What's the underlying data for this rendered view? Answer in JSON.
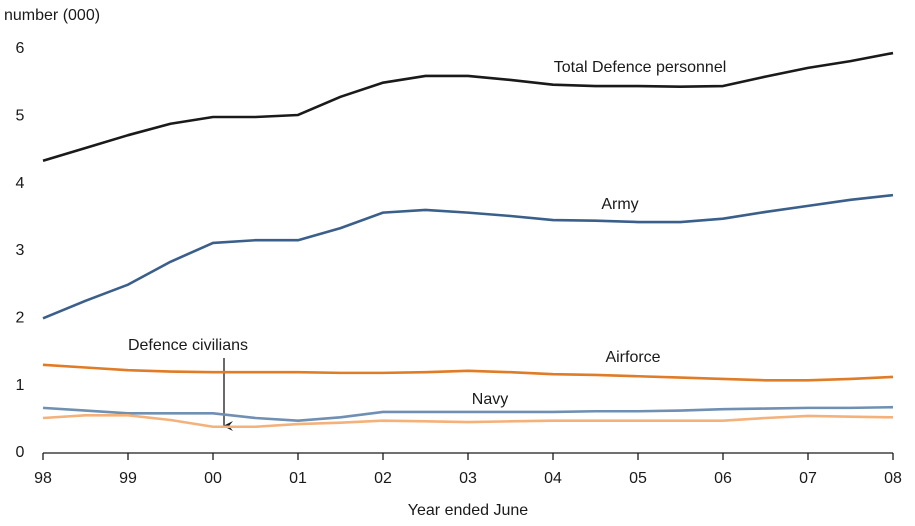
{
  "chart_data": {
    "type": "line",
    "y_label": "number (000)",
    "x_label": "Year ended June",
    "x": [
      1998,
      1998.5,
      1999,
      1999.5,
      2000,
      2000.5,
      2001,
      2001.5,
      2002,
      2002.5,
      2003,
      2003.5,
      2004,
      2004.5,
      2005,
      2005.5,
      2006,
      2006.5,
      2007,
      2007.5,
      2008
    ],
    "xlim": [
      1998,
      2008
    ],
    "xticks": [
      {
        "value": 1998,
        "label": "98"
      },
      {
        "value": 1999,
        "label": "99"
      },
      {
        "value": 2000,
        "label": "00"
      },
      {
        "value": 2001,
        "label": "01"
      },
      {
        "value": 2002,
        "label": "02"
      },
      {
        "value": 2003,
        "label": "03"
      },
      {
        "value": 2004,
        "label": "04"
      },
      {
        "value": 2005,
        "label": "05"
      },
      {
        "value": 2006,
        "label": "06"
      },
      {
        "value": 2007,
        "label": "07"
      },
      {
        "value": 2008,
        "label": "08"
      }
    ],
    "ylim": [
      0,
      6
    ],
    "yticks": [
      0,
      1,
      2,
      3,
      4,
      5,
      6
    ],
    "grid": false,
    "series": [
      {
        "name": "Total Defence personnel",
        "color": "#1a1a1a",
        "values": [
          4.34,
          4.53,
          4.72,
          4.89,
          4.99,
          4.99,
          5.02,
          5.29,
          5.5,
          5.6,
          5.6,
          5.54,
          5.47,
          5.45,
          5.45,
          5.44,
          5.45,
          5.59,
          5.72,
          5.82,
          5.94
        ]
      },
      {
        "name": "Army",
        "color": "#3a5f8a",
        "values": [
          2.0,
          2.26,
          2.5,
          2.84,
          3.12,
          3.16,
          3.16,
          3.34,
          3.57,
          3.61,
          3.57,
          3.52,
          3.46,
          3.45,
          3.43,
          3.43,
          3.48,
          3.58,
          3.67,
          3.76,
          3.83
        ]
      },
      {
        "name": "Airforce",
        "color": "#e07b26",
        "values": [
          1.31,
          1.27,
          1.23,
          1.21,
          1.2,
          1.2,
          1.2,
          1.19,
          1.19,
          1.2,
          1.22,
          1.2,
          1.17,
          1.16,
          1.14,
          1.12,
          1.1,
          1.08,
          1.08,
          1.1,
          1.13
        ]
      },
      {
        "name": "Navy",
        "color": "#6f8fb3",
        "values": [
          0.67,
          0.63,
          0.59,
          0.59,
          0.59,
          0.52,
          0.48,
          0.53,
          0.61,
          0.61,
          0.61,
          0.61,
          0.61,
          0.62,
          0.62,
          0.63,
          0.65,
          0.66,
          0.67,
          0.67,
          0.68
        ]
      },
      {
        "name": "Defence civilians",
        "color": "#f5b17a",
        "values": [
          0.52,
          0.56,
          0.56,
          0.49,
          0.39,
          0.39,
          0.43,
          0.45,
          0.48,
          0.47,
          0.46,
          0.47,
          0.48,
          0.48,
          0.48,
          0.48,
          0.48,
          0.52,
          0.55,
          0.54,
          0.53
        ]
      }
    ]
  }
}
